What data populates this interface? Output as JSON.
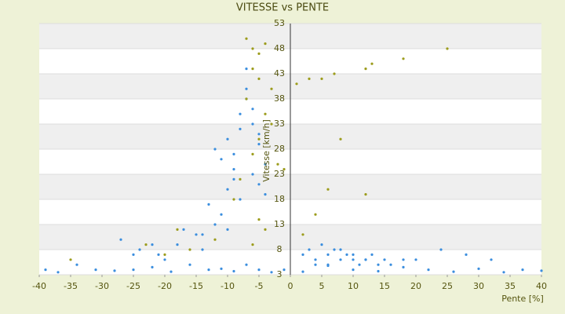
{
  "chart_data": {
    "type": "scatter",
    "title": "VITESSE vs PENTE",
    "xlabel": "Pente [%]",
    "ylabel": "Vitesse [km/h]",
    "xlim": [
      -40,
      40
    ],
    "xticks": [
      -40,
      -35,
      -30,
      -25,
      -20,
      -15,
      -10,
      -5,
      0,
      5,
      10,
      15,
      20,
      25,
      30,
      35,
      40
    ],
    "ylim": [
      3,
      53
    ],
    "yticks": [
      3,
      8,
      13,
      18,
      23,
      28,
      33,
      38,
      43,
      48,
      53
    ],
    "grid": true,
    "series": [
      {
        "color": "#3b8ede",
        "x": [
          -39,
          -37,
          -34,
          -31,
          -28,
          -25,
          -22,
          -19,
          -16,
          -13,
          -11,
          -9,
          -7,
          -5,
          -3,
          -1,
          2,
          6,
          10,
          14,
          18,
          22,
          26,
          30,
          34,
          37,
          40,
          -12,
          -11,
          -10,
          -9,
          -8,
          -7,
          -6,
          -5,
          -4,
          -10,
          -9,
          -8,
          -7,
          -6,
          -5,
          -11,
          -13,
          -9,
          -7,
          -5,
          -8,
          -6,
          -4,
          -12,
          -14,
          -10,
          -27,
          -24,
          -21,
          -18,
          -15,
          -20,
          -17,
          -25,
          -22,
          -14,
          2,
          3,
          4,
          5,
          6,
          7,
          8,
          9,
          10,
          11,
          12,
          13,
          14,
          15,
          16,
          18,
          20,
          24,
          28,
          32,
          4,
          6,
          8,
          10,
          12
        ],
        "values": [
          4,
          3.5,
          5,
          4,
          3.8,
          4,
          4.5,
          3.6,
          5,
          4,
          4.2,
          3.7,
          5,
          4,
          3.5,
          4,
          3.6,
          4.8,
          4,
          3.7,
          4.5,
          4,
          3.6,
          4.2,
          3.5,
          4,
          3.8,
          28,
          26,
          30,
          24,
          35,
          38,
          33,
          29,
          25,
          20,
          22,
          18,
          40,
          36,
          31,
          15,
          17,
          27,
          44,
          21,
          32,
          23,
          19,
          13,
          11,
          12,
          10,
          8,
          7,
          9,
          11,
          6,
          12,
          7,
          9,
          8,
          7,
          8,
          6,
          9,
          7,
          8,
          6,
          7,
          7,
          5,
          6,
          7,
          5,
          6,
          5,
          6,
          6,
          8,
          7,
          6,
          5,
          5,
          8,
          6,
          6
        ]
      },
      {
        "color": "#9c9c1c",
        "x": [
          -7,
          -6,
          -5,
          -4,
          -6,
          -5,
          -3,
          -7,
          -4,
          -5,
          -6,
          -3,
          -2,
          -8,
          -9,
          -5,
          -4,
          -6,
          -12,
          -16,
          -20,
          -18,
          -23,
          -35,
          1,
          3,
          5,
          7,
          12,
          13,
          18,
          25,
          8,
          12,
          4,
          6,
          2,
          -1
        ],
        "values": [
          50,
          48,
          47,
          49,
          44,
          42,
          40,
          38,
          35,
          30,
          27,
          33,
          25,
          22,
          18,
          14,
          12,
          9,
          10,
          8,
          7,
          12,
          9,
          6,
          41,
          42,
          42,
          43,
          44,
          45,
          46,
          48,
          30,
          19,
          15,
          20,
          11,
          24
        ]
      }
    ]
  }
}
